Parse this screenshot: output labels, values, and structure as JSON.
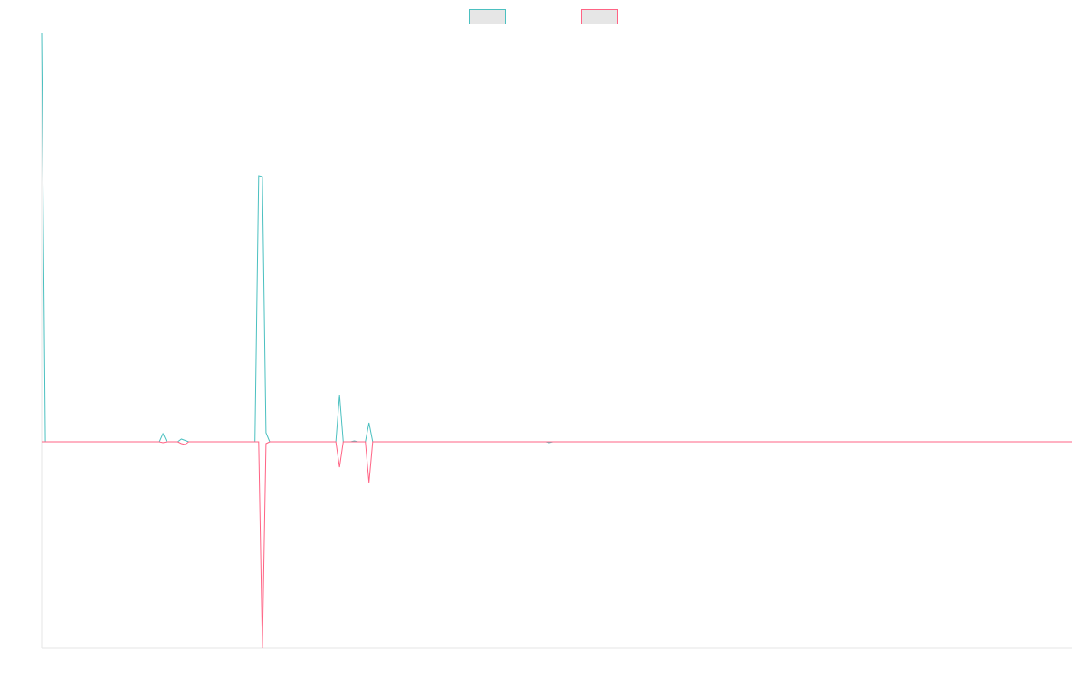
{
  "chart_data": {
    "type": "line",
    "title": "",
    "xlabel": "",
    "ylabel": "",
    "x": [
      0,
      1,
      2,
      3,
      4,
      5,
      6,
      7,
      8,
      9,
      10,
      11,
      12,
      13,
      14,
      15,
      16,
      17,
      18,
      19,
      20,
      21,
      22,
      23,
      24,
      25,
      26,
      27,
      28,
      29,
      30,
      31,
      32,
      33,
      34,
      35,
      36,
      37,
      38,
      39,
      40,
      41,
      42,
      43,
      44,
      45,
      46,
      47,
      48,
      49,
      50,
      51,
      52,
      53,
      54,
      55,
      56,
      57,
      58,
      59,
      60,
      61,
      62,
      63,
      64,
      65,
      66,
      67,
      68,
      69,
      70,
      71,
      72,
      73,
      74,
      75,
      76,
      77,
      78,
      79,
      80,
      81,
      82,
      83,
      84,
      85,
      86,
      87,
      88,
      89,
      90,
      91,
      92,
      93,
      94,
      95,
      96,
      97,
      98,
      99,
      100,
      101,
      102,
      103,
      104,
      105,
      106,
      107,
      108,
      109,
      110,
      111,
      112,
      113,
      114,
      115,
      116,
      117,
      118,
      119,
      120,
      121,
      122,
      123,
      124,
      125,
      126,
      127,
      128,
      129,
      130,
      131,
      132,
      133,
      134,
      135,
      136,
      137,
      138,
      139,
      140,
      141,
      142,
      143,
      144,
      145,
      146,
      147,
      148,
      149,
      150,
      151,
      152,
      153,
      154,
      155,
      156,
      157,
      158,
      159,
      160,
      161,
      162,
      163,
      164,
      165,
      166,
      167,
      168,
      169,
      170,
      171,
      172,
      173,
      174,
      175,
      176,
      177,
      178,
      179,
      180,
      181,
      182,
      183,
      184,
      185,
      186,
      187,
      188,
      189,
      190,
      191,
      192,
      193,
      194,
      195,
      196,
      197,
      198,
      199,
      200,
      201,
      202,
      203,
      204,
      205,
      206,
      207,
      208,
      209,
      210,
      211,
      212,
      213,
      214,
      215,
      216,
      217,
      218,
      219,
      220,
      221,
      222,
      223,
      224,
      225,
      226,
      227,
      228,
      229,
      230,
      231,
      232,
      233,
      234,
      235,
      236,
      237,
      238,
      239,
      240,
      241,
      242,
      243,
      244,
      245,
      246,
      247,
      248,
      249,
      250,
      251,
      252,
      253,
      254,
      255,
      256,
      257,
      258,
      259,
      260,
      261,
      262,
      263,
      264,
      265,
      266,
      267,
      268,
      269,
      270,
      271,
      272,
      273,
      274,
      275,
      276,
      277,
      278,
      279,
      280
    ],
    "xlim": [
      0,
      280
    ],
    "ylim": [
      -228,
      452
    ],
    "grid": false,
    "legend_position": "top-center",
    "series": [
      {
        "name": "",
        "color": "#4bc0c0",
        "fill": "#e6e6e6",
        "points": [
          [
            0,
            452
          ],
          [
            1,
            0
          ],
          [
            32,
            0
          ],
          [
            33,
            9
          ],
          [
            34,
            0
          ],
          [
            37,
            0
          ],
          [
            38,
            3
          ],
          [
            40,
            0
          ],
          [
            58,
            0
          ],
          [
            59,
            294
          ],
          [
            60,
            293
          ],
          [
            61,
            10
          ],
          [
            62,
            0
          ],
          [
            80,
            0
          ],
          [
            81,
            52
          ],
          [
            82,
            0
          ],
          [
            84,
            0
          ],
          [
            85,
            1
          ],
          [
            86,
            0
          ],
          [
            88,
            0
          ],
          [
            89,
            21
          ],
          [
            90,
            0
          ],
          [
            137,
            0
          ],
          [
            138,
            -1
          ],
          [
            139,
            0
          ],
          [
            280,
            0
          ]
        ]
      },
      {
        "name": "",
        "color": "#ff6384",
        "fill": "#e6e6e6",
        "points": [
          [
            0,
            0
          ],
          [
            32,
            0
          ],
          [
            33,
            -1
          ],
          [
            34,
            0
          ],
          [
            37,
            0
          ],
          [
            38,
            -2
          ],
          [
            39,
            -3
          ],
          [
            40,
            0
          ],
          [
            59,
            0
          ],
          [
            60,
            -228
          ],
          [
            61,
            -2
          ],
          [
            62,
            0
          ],
          [
            80,
            0
          ],
          [
            81,
            -28
          ],
          [
            82,
            0
          ],
          [
            88,
            0
          ],
          [
            89,
            -45
          ],
          [
            90,
            0
          ],
          [
            280,
            0
          ]
        ]
      }
    ]
  }
}
